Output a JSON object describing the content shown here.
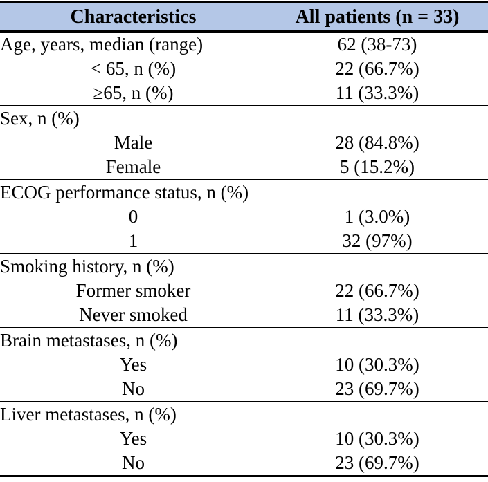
{
  "colors": {
    "header_bg": "#b4c7e7",
    "border": "#000000",
    "text": "#000000"
  },
  "table": {
    "header": {
      "col1": "Characteristics",
      "col2": "All patients (n = 33)"
    },
    "sections": [
      {
        "rows": [
          {
            "label": "Age, years, median (range)",
            "value": "62 (38-73)",
            "indent": false
          },
          {
            "label": "< 65, n (%)",
            "value": "22 (66.7%)",
            "indent": true
          },
          {
            "label": "≥65, n (%)",
            "value": "11 (33.3%)",
            "indent": true
          }
        ]
      },
      {
        "rows": [
          {
            "label": "Sex, n (%)",
            "value": "",
            "indent": false
          },
          {
            "label": "Male",
            "value": "28 (84.8%)",
            "indent": true
          },
          {
            "label": "Female",
            "value": "5 (15.2%)",
            "indent": true
          }
        ]
      },
      {
        "rows": [
          {
            "label": "ECOG performance status, n (%)",
            "value": "",
            "indent": false
          },
          {
            "label": "0",
            "value": "1 (3.0%)",
            "indent": true
          },
          {
            "label": "1",
            "value": "32 (97%)",
            "indent": true
          }
        ]
      },
      {
        "rows": [
          {
            "label": "Smoking history, n (%)",
            "value": "",
            "indent": false
          },
          {
            "label": "Former smoker",
            "value": "22 (66.7%)",
            "indent": true
          },
          {
            "label": "Never smoked",
            "value": "11 (33.3%)",
            "indent": true
          }
        ]
      },
      {
        "rows": [
          {
            "label": "Brain metastases, n (%)",
            "value": "",
            "indent": false
          },
          {
            "label": "Yes",
            "value": "10 (30.3%)",
            "indent": true
          },
          {
            "label": "No",
            "value": "23 (69.7%)",
            "indent": true
          }
        ]
      },
      {
        "rows": [
          {
            "label": "Liver metastases, n (%)",
            "value": "",
            "indent": false
          },
          {
            "label": "Yes",
            "value": "10 (30.3%)",
            "indent": true
          },
          {
            "label": "No",
            "value": "23 (69.7%)",
            "indent": true
          }
        ]
      }
    ]
  }
}
